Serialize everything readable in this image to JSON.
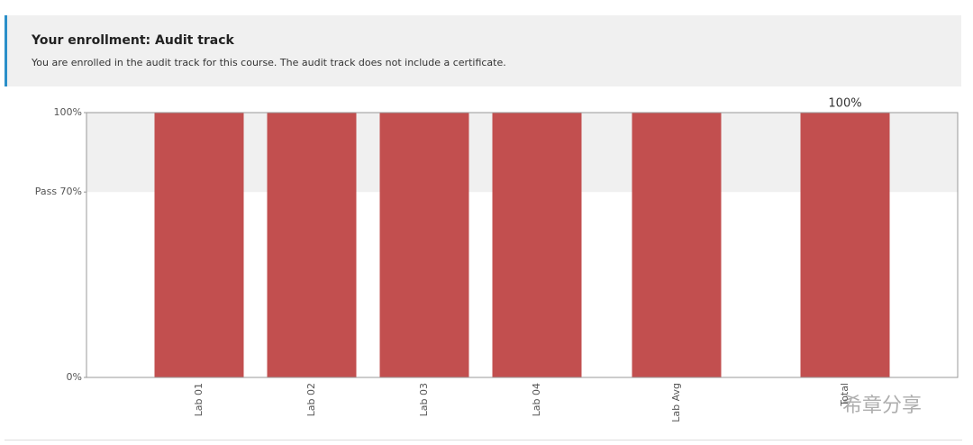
{
  "banner": {
    "title": "Your enrollment: Audit track",
    "text": "You are enrolled in the audit track for this course. The audit track does not include a certificate."
  },
  "chart_data": {
    "type": "bar",
    "categories": [
      "Lab 01",
      "Lab 02",
      "Lab 03",
      "Lab 04",
      "Lab Avg",
      "Total"
    ],
    "values": [
      100,
      100,
      100,
      100,
      100,
      100
    ],
    "value_labels": [
      null,
      null,
      null,
      null,
      null,
      "100%"
    ],
    "color": "#bf4646",
    "ylim": [
      0,
      100
    ],
    "yticks": [
      {
        "value": 0,
        "label": "0%"
      },
      {
        "value": 70,
        "label": "Pass 70%"
      },
      {
        "value": 100,
        "label": "100%"
      }
    ],
    "pass_shading": true
  },
  "watermark": "希章分享"
}
